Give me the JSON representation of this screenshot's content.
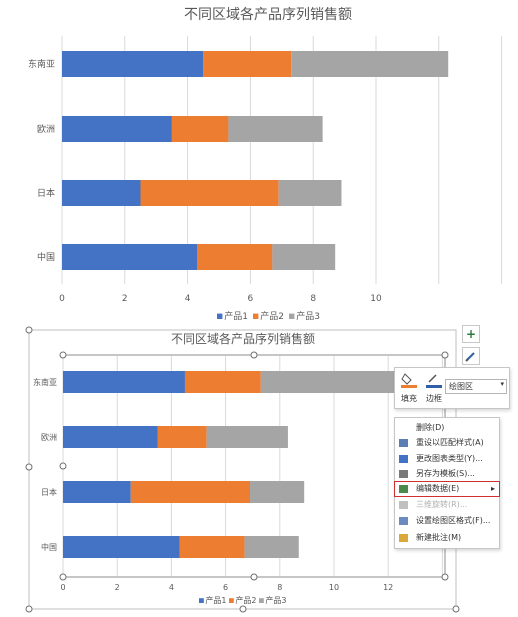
{
  "chart_data": [
    {
      "type": "bar",
      "orientation": "horizontal",
      "stacked": true,
      "title": "不同区域各产品序列销售额",
      "categories": [
        "东南亚",
        "欧洲",
        "日本",
        "中国"
      ],
      "series": [
        {
          "name": "产品1",
          "values": [
            4.5,
            3.5,
            2.5,
            4.3
          ],
          "color": "#4472C4"
        },
        {
          "name": "产品2",
          "values": [
            2.8,
            1.8,
            4.4,
            2.4
          ],
          "color": "#ED7D31"
        },
        {
          "name": "产品3",
          "values": [
            5.0,
            3.0,
            2.0,
            2.0
          ],
          "color": "#A5A5A5"
        }
      ],
      "xlim": [
        0,
        14
      ],
      "x_ticks": [
        "0",
        "2",
        "4",
        "6",
        "8",
        "10"
      ],
      "grid": true,
      "legend": "bottom"
    },
    {
      "type": "bar",
      "orientation": "horizontal",
      "stacked": true,
      "title": "不同区域各产品序列销售额",
      "categories": [
        "东南亚",
        "欧洲",
        "日本",
        "中国"
      ],
      "series": [
        {
          "name": "产品1",
          "values": [
            4.5,
            3.5,
            2.5,
            4.3
          ],
          "color": "#4472C4"
        },
        {
          "name": "产品2",
          "values": [
            2.8,
            1.8,
            4.4,
            2.4
          ],
          "color": "#ED7D31"
        },
        {
          "name": "产品3",
          "values": [
            5.0,
            3.0,
            2.0,
            2.0
          ],
          "color": "#A5A5A5"
        }
      ],
      "xlim": [
        0,
        14
      ],
      "x_ticks": [
        "0",
        "2",
        "4",
        "6",
        "8",
        "10",
        "12"
      ],
      "grid": true,
      "legend": "bottom",
      "selected": true
    }
  ],
  "format_toolbar": {
    "fill_label": "填充",
    "border_label": "边框",
    "area_select": "绘图区"
  },
  "context_menu": {
    "items": [
      {
        "label": "删除(D)",
        "icon": "none",
        "state": "normal"
      },
      {
        "label": "重设以匹配样式(A)",
        "icon": "reset-style-icon",
        "state": "normal"
      },
      {
        "label": "更改图表类型(Y)...",
        "icon": "chart-type-icon",
        "state": "normal"
      },
      {
        "label": "另存为模板(S)...",
        "icon": "save-template-icon",
        "state": "normal"
      },
      {
        "label": "编辑数据(E)",
        "icon": "edit-data-icon",
        "state": "highlighted",
        "submenu": true
      },
      {
        "label": "三维旋转(R)...",
        "icon": "rotate-3d-icon",
        "state": "disabled"
      },
      {
        "label": "设置绘图区格式(F)...",
        "icon": "format-plot-area-icon",
        "state": "normal"
      },
      {
        "label": "新建批注(M)",
        "icon": "new-comment-icon",
        "state": "normal"
      }
    ]
  },
  "side_buttons": [
    {
      "name": "chart-elements-button",
      "glyph": "+"
    },
    {
      "name": "chart-styles-button",
      "glyph": "brush-icon"
    }
  ]
}
